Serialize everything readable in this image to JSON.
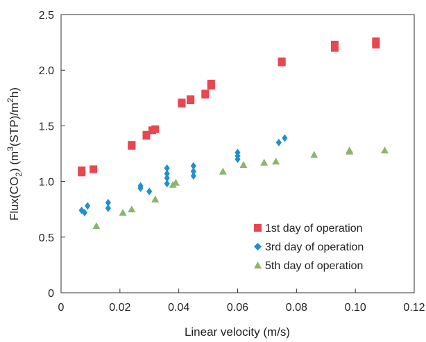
{
  "chart_data": {
    "type": "scatter",
    "xlabel": "Linear velocity (m/s)",
    "ylabel_parts": {
      "flux": "Flux(CO",
      "co2_sub": "2",
      "units_a": ") (m",
      "m_sup": "3",
      "units_b": "(STP)/m",
      "m2_sup": "2",
      "units_c": "h)"
    },
    "xlim": [
      0,
      0.12
    ],
    "ylim": [
      0,
      2.5
    ],
    "x_ticks": [
      "0",
      "0.02",
      "0.04",
      "0.06",
      "0.08",
      "0.10",
      "0.12"
    ],
    "x_tick_values": [
      0,
      0.02,
      0.04,
      0.06,
      0.08,
      0.1,
      0.12
    ],
    "y_ticks": [
      "0",
      "0.5",
      "1.0",
      "1.5",
      "2.0",
      "2.5"
    ],
    "y_tick_values": [
      0,
      0.5,
      1.0,
      1.5,
      2.0,
      2.5
    ],
    "grid": false,
    "legend_position": "bottom-right",
    "series": [
      {
        "name": "1st day of operation",
        "marker": "square",
        "color": "#e8474f",
        "points": [
          [
            0.007,
            1.08
          ],
          [
            0.007,
            1.1
          ],
          [
            0.011,
            1.11
          ],
          [
            0.024,
            1.32
          ],
          [
            0.024,
            1.33
          ],
          [
            0.029,
            1.41
          ],
          [
            0.029,
            1.42
          ],
          [
            0.031,
            1.46
          ],
          [
            0.032,
            1.47
          ],
          [
            0.041,
            1.7
          ],
          [
            0.041,
            1.71
          ],
          [
            0.044,
            1.73
          ],
          [
            0.044,
            1.74
          ],
          [
            0.049,
            1.78
          ],
          [
            0.049,
            1.79
          ],
          [
            0.051,
            1.86
          ],
          [
            0.051,
            1.88
          ],
          [
            0.075,
            2.07
          ],
          [
            0.075,
            2.08
          ],
          [
            0.093,
            2.2
          ],
          [
            0.093,
            2.23
          ],
          [
            0.107,
            2.23
          ],
          [
            0.107,
            2.26
          ]
        ]
      },
      {
        "name": "3rd day of operation",
        "marker": "diamond",
        "color": "#1e90d0",
        "points": [
          [
            0.007,
            0.74
          ],
          [
            0.008,
            0.72
          ],
          [
            0.009,
            0.78
          ],
          [
            0.016,
            0.76
          ],
          [
            0.016,
            0.81
          ],
          [
            0.027,
            0.94
          ],
          [
            0.027,
            0.96
          ],
          [
            0.03,
            0.91
          ],
          [
            0.036,
            0.98
          ],
          [
            0.036,
            1.03
          ],
          [
            0.036,
            1.07
          ],
          [
            0.036,
            1.12
          ],
          [
            0.045,
            1.05
          ],
          [
            0.045,
            1.09
          ],
          [
            0.045,
            1.14
          ],
          [
            0.06,
            1.2
          ],
          [
            0.06,
            1.23
          ],
          [
            0.06,
            1.26
          ],
          [
            0.074,
            1.35
          ],
          [
            0.076,
            1.39
          ]
        ]
      },
      {
        "name": "5th day of operation",
        "marker": "triangle",
        "color": "#8ab66a",
        "points": [
          [
            0.012,
            0.6
          ],
          [
            0.021,
            0.72
          ],
          [
            0.024,
            0.75
          ],
          [
            0.032,
            0.84
          ],
          [
            0.038,
            0.97
          ],
          [
            0.039,
            0.99
          ],
          [
            0.055,
            1.09
          ],
          [
            0.062,
            1.15
          ],
          [
            0.069,
            1.17
          ],
          [
            0.073,
            1.18
          ],
          [
            0.086,
            1.24
          ],
          [
            0.098,
            1.27
          ],
          [
            0.098,
            1.28
          ],
          [
            0.11,
            1.28
          ]
        ]
      }
    ]
  }
}
